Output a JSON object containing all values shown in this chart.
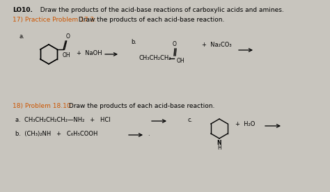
{
  "bg_color": "#c8c5be",
  "paper_color": "#e8e5de",
  "title_bold": "LO10.",
  "title_rest": "  Draw the products of the acid-base reactions of carboxylic acids and amines.",
  "prob17_orange": "17) Practice Problem 17.3:",
  "prob17_rest": " Draw the products of each acid-base reaction.",
  "prob18_orange": "18) Problem 18.10:",
  "prob18_rest": " Draw the products of each acid-base reaction.",
  "rxn18a": "a.  CH₃CH₂CH₂CH₂—NH₂   +   HCl",
  "rxn18b": "b.  (CH₃)₂NH   +   C₆H₅COOH",
  "h2o": "+  H₂O"
}
